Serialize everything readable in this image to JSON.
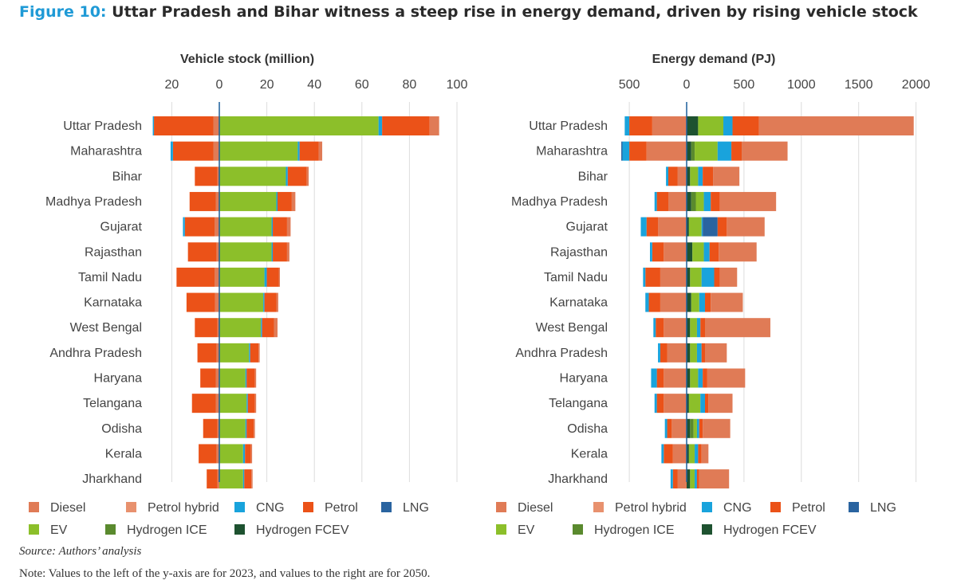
{
  "figure_label": "Figure 10:",
  "figure_title": "Uttar Pradesh and Bihar witness a steep rise in energy demand, driven by rising vehicle stock",
  "source": "Source: Authors’ analysis",
  "note": "Note: Values to the left of the y-axis are for 2023, and values to the right are for 2050.",
  "colors": {
    "Diesel": "#e07b56",
    "Petrol hybrid": "#e8916e",
    "CNG": "#19a3dc",
    "Petrol": "#eb5218",
    "LNG": "#2a64a0",
    "EV": "#8cbf2a",
    "Hydrogen ICE": "#5a8a2e",
    "Hydrogen FCEV": "#1e5230"
  },
  "chart_data": [
    {
      "type": "bar",
      "orientation": "horizontal",
      "stacked": true,
      "diverging": true,
      "title": "Vehicle stock (million)",
      "xlim": [
        -27,
        100
      ],
      "xticks": [
        -20,
        0,
        20,
        40,
        60,
        80,
        100
      ],
      "xtick_labels": [
        "20",
        "0",
        "20",
        "40",
        "60",
        "80",
        "100"
      ],
      "grid": true,
      "legend_position": "bottom",
      "legend_rows": [
        [
          "Diesel",
          "Petrol hybrid",
          "CNG",
          "Petrol",
          "LNG"
        ],
        [
          "EV",
          "Hydrogen ICE",
          "Hydrogen FCEV"
        ]
      ],
      "categories": [
        "Uttar Pradesh",
        "Maharashtra",
        "Bihar",
        "Madhya Pradesh",
        "Gujarat",
        "Rajasthan",
        "Tamil Nadu",
        "Karnataka",
        "West Bengal",
        "Andhra Pradesh",
        "Haryana",
        "Telangana",
        "Odisha",
        "Kerala",
        "Jharkhand"
      ],
      "series_2023": [
        {
          "name": "Diesel",
          "values": [
            2.5,
            2.5,
            0.8,
            1.5,
            2.0,
            1.2,
            2.0,
            1.8,
            0.8,
            1.2,
            1.5,
            1.5,
            0.8,
            1.2,
            0.8
          ]
        },
        {
          "name": "Petrol",
          "values": [
            25.0,
            17.0,
            9.5,
            11.0,
            12.5,
            12.0,
            16.0,
            12.0,
            9.5,
            8.0,
            6.5,
            10.0,
            6.0,
            7.5,
            4.5
          ]
        },
        {
          "name": "CNG",
          "values": [
            0.5,
            1.0,
            0.0,
            0.0,
            0.8,
            0.0,
            0.0,
            0.0,
            0.0,
            0.0,
            0.0,
            0.0,
            0.0,
            0.0,
            0.0
          ]
        }
      ],
      "series_2050": [
        {
          "name": "EV",
          "values": [
            67.0,
            33.0,
            28.0,
            24.0,
            22.0,
            22.0,
            19.0,
            18.5,
            17.5,
            12.5,
            11.0,
            11.5,
            11.0,
            10.0,
            10.0
          ]
        },
        {
          "name": "CNG",
          "values": [
            1.5,
            0.8,
            0.8,
            0.5,
            0.5,
            0.5,
            1.0,
            0.5,
            0.5,
            0.5,
            0.5,
            0.5,
            0.5,
            0.8,
            0.5
          ]
        },
        {
          "name": "Petrol",
          "values": [
            20.0,
            8.0,
            8.0,
            6.0,
            6.0,
            6.0,
            5.0,
            5.0,
            5.0,
            3.5,
            3.5,
            3.0,
            3.0,
            2.5,
            3.0
          ]
        },
        {
          "name": "Diesel",
          "values": [
            4.0,
            1.5,
            0.8,
            1.5,
            1.5,
            1.0,
            0.5,
            0.8,
            1.5,
            0.5,
            0.5,
            0.5,
            0.5,
            0.5,
            0.5
          ]
        }
      ]
    },
    {
      "type": "bar",
      "orientation": "horizontal",
      "stacked": true,
      "diverging": true,
      "title": "Energy demand (PJ)",
      "xlim": [
        -580,
        2050
      ],
      "xticks": [
        -500,
        0,
        500,
        1000,
        1500,
        2000
      ],
      "xtick_labels": [
        "500",
        "0",
        "500",
        "1000",
        "1500",
        "2000"
      ],
      "grid": true,
      "legend_position": "bottom",
      "legend_rows": [
        [
          "Diesel",
          "Petrol hybrid",
          "CNG",
          "Petrol",
          "LNG"
        ],
        [
          "EV",
          "Hydrogen ICE",
          "Hydrogen FCEV"
        ]
      ],
      "categories": [
        "Uttar Pradesh",
        "Maharashtra",
        "Bihar",
        "Madhya Pradesh",
        "Gujarat",
        "Rajasthan",
        "Tamil Nadu",
        "Karnataka",
        "West Bengal",
        "Andhra Pradesh",
        "Haryana",
        "Telangana",
        "Odisha",
        "Kerala",
        "Jharkhand"
      ],
      "series_2023": [
        {
          "name": "Diesel",
          "values": [
            300,
            350,
            80,
            160,
            250,
            200,
            230,
            230,
            200,
            170,
            200,
            200,
            130,
            120,
            80
          ]
        },
        {
          "name": "Petrol",
          "values": [
            200,
            150,
            80,
            100,
            100,
            100,
            130,
            100,
            70,
            60,
            60,
            60,
            40,
            80,
            40
          ]
        },
        {
          "name": "CNG",
          "values": [
            40,
            60,
            20,
            20,
            50,
            20,
            20,
            30,
            20,
            20,
            50,
            20,
            20,
            20,
            20
          ]
        },
        {
          "name": "LNG",
          "values": [
            0,
            10,
            0,
            0,
            0,
            0,
            0,
            0,
            0,
            0,
            0,
            0,
            0,
            0,
            0
          ]
        }
      ],
      "series_2050": [
        {
          "name": "Hydrogen FCEV",
          "values": [
            100,
            40,
            30,
            40,
            20,
            50,
            30,
            40,
            30,
            30,
            30,
            20,
            30,
            20,
            30
          ]
        },
        {
          "name": "Hydrogen ICE",
          "values": [
            0,
            30,
            0,
            40,
            0,
            0,
            0,
            0,
            0,
            0,
            0,
            0,
            30,
            0,
            0
          ]
        },
        {
          "name": "EV",
          "values": [
            220,
            200,
            70,
            70,
            110,
            100,
            100,
            70,
            60,
            60,
            70,
            100,
            30,
            50,
            40
          ]
        },
        {
          "name": "CNG",
          "values": [
            80,
            120,
            40,
            60,
            10,
            50,
            110,
            50,
            30,
            40,
            40,
            40,
            20,
            30,
            20
          ]
        },
        {
          "name": "LNG",
          "values": [
            0,
            0,
            0,
            0,
            130,
            0,
            0,
            0,
            0,
            0,
            0,
            0,
            0,
            0,
            0
          ]
        },
        {
          "name": "Petrol",
          "values": [
            230,
            90,
            90,
            80,
            80,
            80,
            50,
            50,
            40,
            30,
            40,
            30,
            30,
            30,
            20
          ]
        },
        {
          "name": "Diesel",
          "values": [
            1350,
            400,
            230,
            490,
            330,
            330,
            150,
            280,
            570,
            190,
            330,
            210,
            240,
            60,
            260
          ]
        }
      ]
    }
  ]
}
